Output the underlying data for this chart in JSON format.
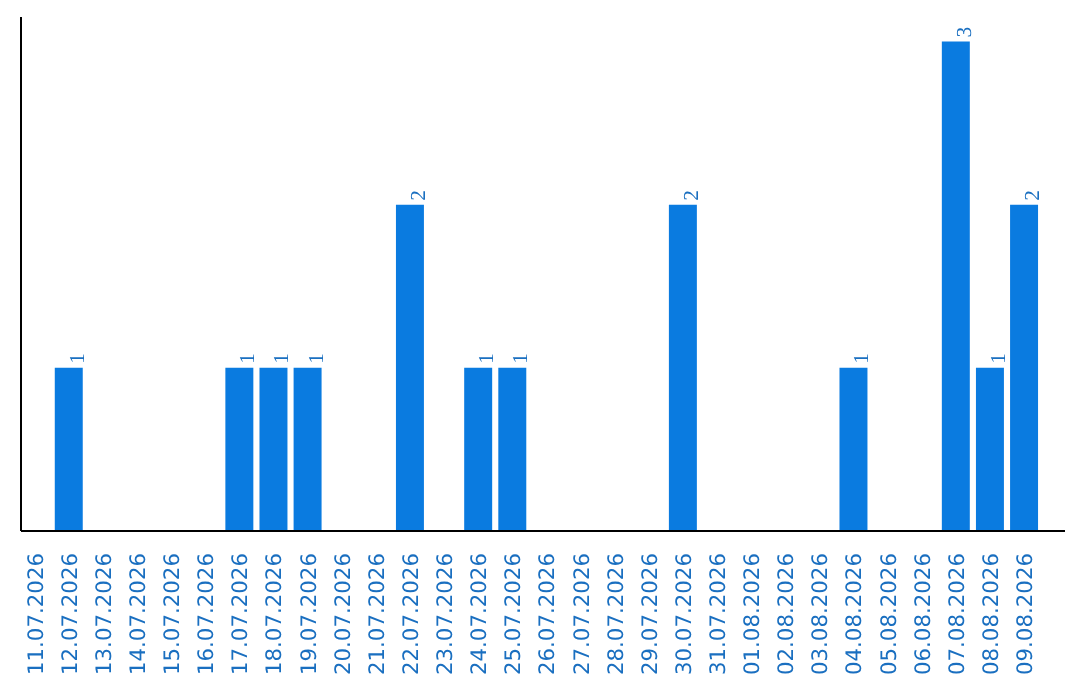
{
  "chart_data": {
    "type": "bar",
    "categories": [
      "11.07.2026",
      "12.07.2026",
      "13.07.2026",
      "14.07.2026",
      "15.07.2026",
      "16.07.2026",
      "17.07.2026",
      "18.07.2026",
      "19.07.2026",
      "20.07.2026",
      "21.07.2026",
      "22.07.2026",
      "23.07.2026",
      "24.07.2026",
      "25.07.2026",
      "26.07.2026",
      "27.07.2026",
      "28.07.2026",
      "29.07.2026",
      "30.07.2026",
      "31.07.2026",
      "01.08.2026",
      "02.08.2026",
      "03.08.2026",
      "04.08.2026",
      "05.08.2026",
      "06.08.2026",
      "07.08.2026",
      "08.08.2026",
      "09.08.2026"
    ],
    "values": [
      0,
      1,
      0,
      0,
      0,
      0,
      1,
      1,
      1,
      0,
      0,
      2,
      0,
      1,
      1,
      0,
      0,
      0,
      0,
      2,
      0,
      0,
      0,
      0,
      1,
      0,
      0,
      3,
      1,
      2
    ],
    "value_labels": [
      null,
      "1",
      null,
      null,
      null,
      null,
      "1",
      "1",
      "1",
      null,
      null,
      "2",
      null,
      "1",
      "1",
      null,
      null,
      null,
      null,
      "2",
      null,
      null,
      null,
      null,
      "1",
      null,
      null,
      "3",
      "1",
      "2"
    ],
    "color": "#0a7be0",
    "grid": false,
    "tick_labels": "x"
  }
}
